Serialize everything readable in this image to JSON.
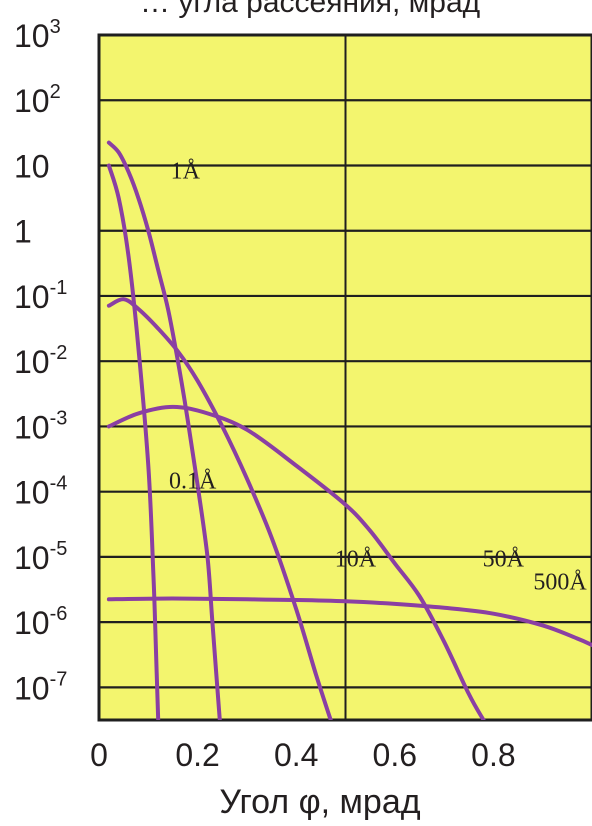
{
  "chart_data": {
    "type": "line",
    "title_partial": "… угла рассеяния, мрад",
    "xlabel": "Угол φ, мрад",
    "ylabel": "",
    "xlim": [
      0,
      1.0
    ],
    "ylim_log10": [
      -7.5,
      3
    ],
    "y_scale": "log",
    "grid": "horizontal at each decade, vertical at x=0.5",
    "x_ticks": [
      "0",
      "0.2",
      "0.4",
      "0.6",
      "0.8"
    ],
    "x_tick_values": [
      0,
      0.2,
      0.4,
      0.6,
      0.8
    ],
    "y_ticks": [
      {
        "base": "10",
        "exp": "3",
        "log": 3
      },
      {
        "base": "10",
        "exp": "2",
        "log": 2
      },
      {
        "base": "10",
        "exp": "",
        "log": 1
      },
      {
        "base": "1",
        "exp": "",
        "log": 0
      },
      {
        "base": "10",
        "exp": "-1",
        "log": -1
      },
      {
        "base": "10",
        "exp": "-2",
        "log": -2
      },
      {
        "base": "10",
        "exp": "-3",
        "log": -3
      },
      {
        "base": "10",
        "exp": "-4",
        "log": -4
      },
      {
        "base": "10",
        "exp": "-5",
        "log": -5
      },
      {
        "base": "10",
        "exp": "-6",
        "log": -6
      },
      {
        "base": "10",
        "exp": "-7",
        "log": -7
      }
    ],
    "colors": {
      "background": "#f3f56e",
      "curve": "#8a3fa3",
      "grid": "#1f1f1f"
    },
    "series": [
      {
        "name": "0.1Å",
        "points": [
          [
            0.02,
            1.0
          ],
          [
            0.04,
            0.5
          ],
          [
            0.06,
            -0.4
          ],
          [
            0.08,
            -1.8
          ],
          [
            0.1,
            -3.6
          ],
          [
            0.11,
            -5.2
          ],
          [
            0.115,
            -6.3
          ],
          [
            0.12,
            -7.5
          ]
        ]
      },
      {
        "name": "1Å",
        "points": [
          [
            0.02,
            1.35
          ],
          [
            0.04,
            1.2
          ],
          [
            0.06,
            0.9
          ],
          [
            0.08,
            0.5
          ],
          [
            0.1,
            0
          ],
          [
            0.12,
            -0.6
          ],
          [
            0.14,
            -1.2
          ],
          [
            0.16,
            -2.0
          ],
          [
            0.18,
            -2.9
          ],
          [
            0.2,
            -3.9
          ],
          [
            0.22,
            -5.0
          ],
          [
            0.23,
            -6.0
          ],
          [
            0.24,
            -7.0
          ],
          [
            0.245,
            -7.5
          ]
        ]
      },
      {
        "name": "10Å",
        "points": [
          [
            0.02,
            -1.15
          ],
          [
            0.05,
            -1.05
          ],
          [
            0.08,
            -1.2
          ],
          [
            0.12,
            -1.5
          ],
          [
            0.16,
            -1.85
          ],
          [
            0.2,
            -2.3
          ],
          [
            0.25,
            -3.0
          ],
          [
            0.3,
            -3.8
          ],
          [
            0.35,
            -4.7
          ],
          [
            0.4,
            -5.8
          ],
          [
            0.44,
            -6.8
          ],
          [
            0.47,
            -7.5
          ]
        ]
      },
      {
        "name": "50Å",
        "points": [
          [
            0.02,
            -3.0
          ],
          [
            0.08,
            -2.8
          ],
          [
            0.15,
            -2.7
          ],
          [
            0.22,
            -2.8
          ],
          [
            0.3,
            -3.05
          ],
          [
            0.4,
            -3.6
          ],
          [
            0.5,
            -4.2
          ],
          [
            0.55,
            -4.6
          ],
          [
            0.6,
            -5.1
          ],
          [
            0.65,
            -5.6
          ],
          [
            0.7,
            -6.3
          ],
          [
            0.75,
            -7.1
          ],
          [
            0.78,
            -7.5
          ]
        ]
      },
      {
        "name": "500Å",
        "points": [
          [
            0.02,
            -5.65
          ],
          [
            0.1,
            -5.64
          ],
          [
            0.2,
            -5.64
          ],
          [
            0.3,
            -5.65
          ],
          [
            0.4,
            -5.66
          ],
          [
            0.5,
            -5.68
          ],
          [
            0.6,
            -5.72
          ],
          [
            0.7,
            -5.78
          ],
          [
            0.8,
            -5.87
          ],
          [
            0.9,
            -6.05
          ],
          [
            0.97,
            -6.25
          ],
          [
            1.0,
            -6.35
          ]
        ]
      }
    ],
    "labels": [
      {
        "text": "1Å",
        "x": 0.175,
        "y": 0.8
      },
      {
        "text": "0.1Å",
        "x": 0.19,
        "y": -3.95
      },
      {
        "text": "10Å",
        "x": 0.52,
        "y": -5.15
      },
      {
        "text": "50Å",
        "x": 0.82,
        "y": -5.15
      },
      {
        "text": "500Å",
        "x": 1.07,
        "y": -5.5
      }
    ]
  }
}
